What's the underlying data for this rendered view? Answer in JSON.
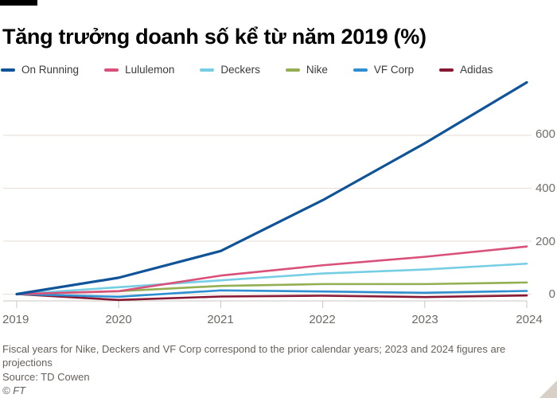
{
  "header": {
    "title": "Tăng trưởng doanh số kể từ năm 2019 (%)"
  },
  "chart_data": {
    "type": "line",
    "title": "Tăng trưởng doanh số kể từ năm 2019 (%)",
    "categories": [
      "2019",
      "2020",
      "2021",
      "2022",
      "2023",
      "2024"
    ],
    "series": [
      {
        "name": "On Running",
        "color": "#0f5499",
        "values": [
          0,
          62,
          163,
          355,
          570,
          800
        ]
      },
      {
        "name": "Lululemon",
        "color": "#d9507a",
        "values": [
          0,
          11,
          70,
          109,
          141,
          180
        ]
      },
      {
        "name": "Deckers",
        "color": "#76cee4",
        "values": [
          0,
          26,
          52,
          78,
          93,
          115
        ]
      },
      {
        "name": "Nike",
        "color": "#93af52",
        "values": [
          0,
          11,
          31,
          38,
          38,
          44
        ]
      },
      {
        "name": "VF Corp",
        "color": "#2e8fd0",
        "values": [
          0,
          -10,
          14,
          10,
          5,
          12
        ]
      },
      {
        "name": "Adidas",
        "color": "#871733",
        "values": [
          0,
          -22,
          -9,
          -6,
          -11,
          -5
        ]
      }
    ],
    "yaxis": {
      "ticks": [
        600,
        400,
        200,
        0
      ],
      "position": "right",
      "ylim": [
        -30,
        820
      ]
    },
    "xlabel": "",
    "ylabel": "",
    "grid": true,
    "legend_position": "top"
  },
  "footer": {
    "note": "Fiscal years for Nike, Deckers and VF Corp correspond to the prior calendar years; 2023 and 2024 figures are projections",
    "source": "Source: TD Cowen",
    "credit": "© FT"
  }
}
